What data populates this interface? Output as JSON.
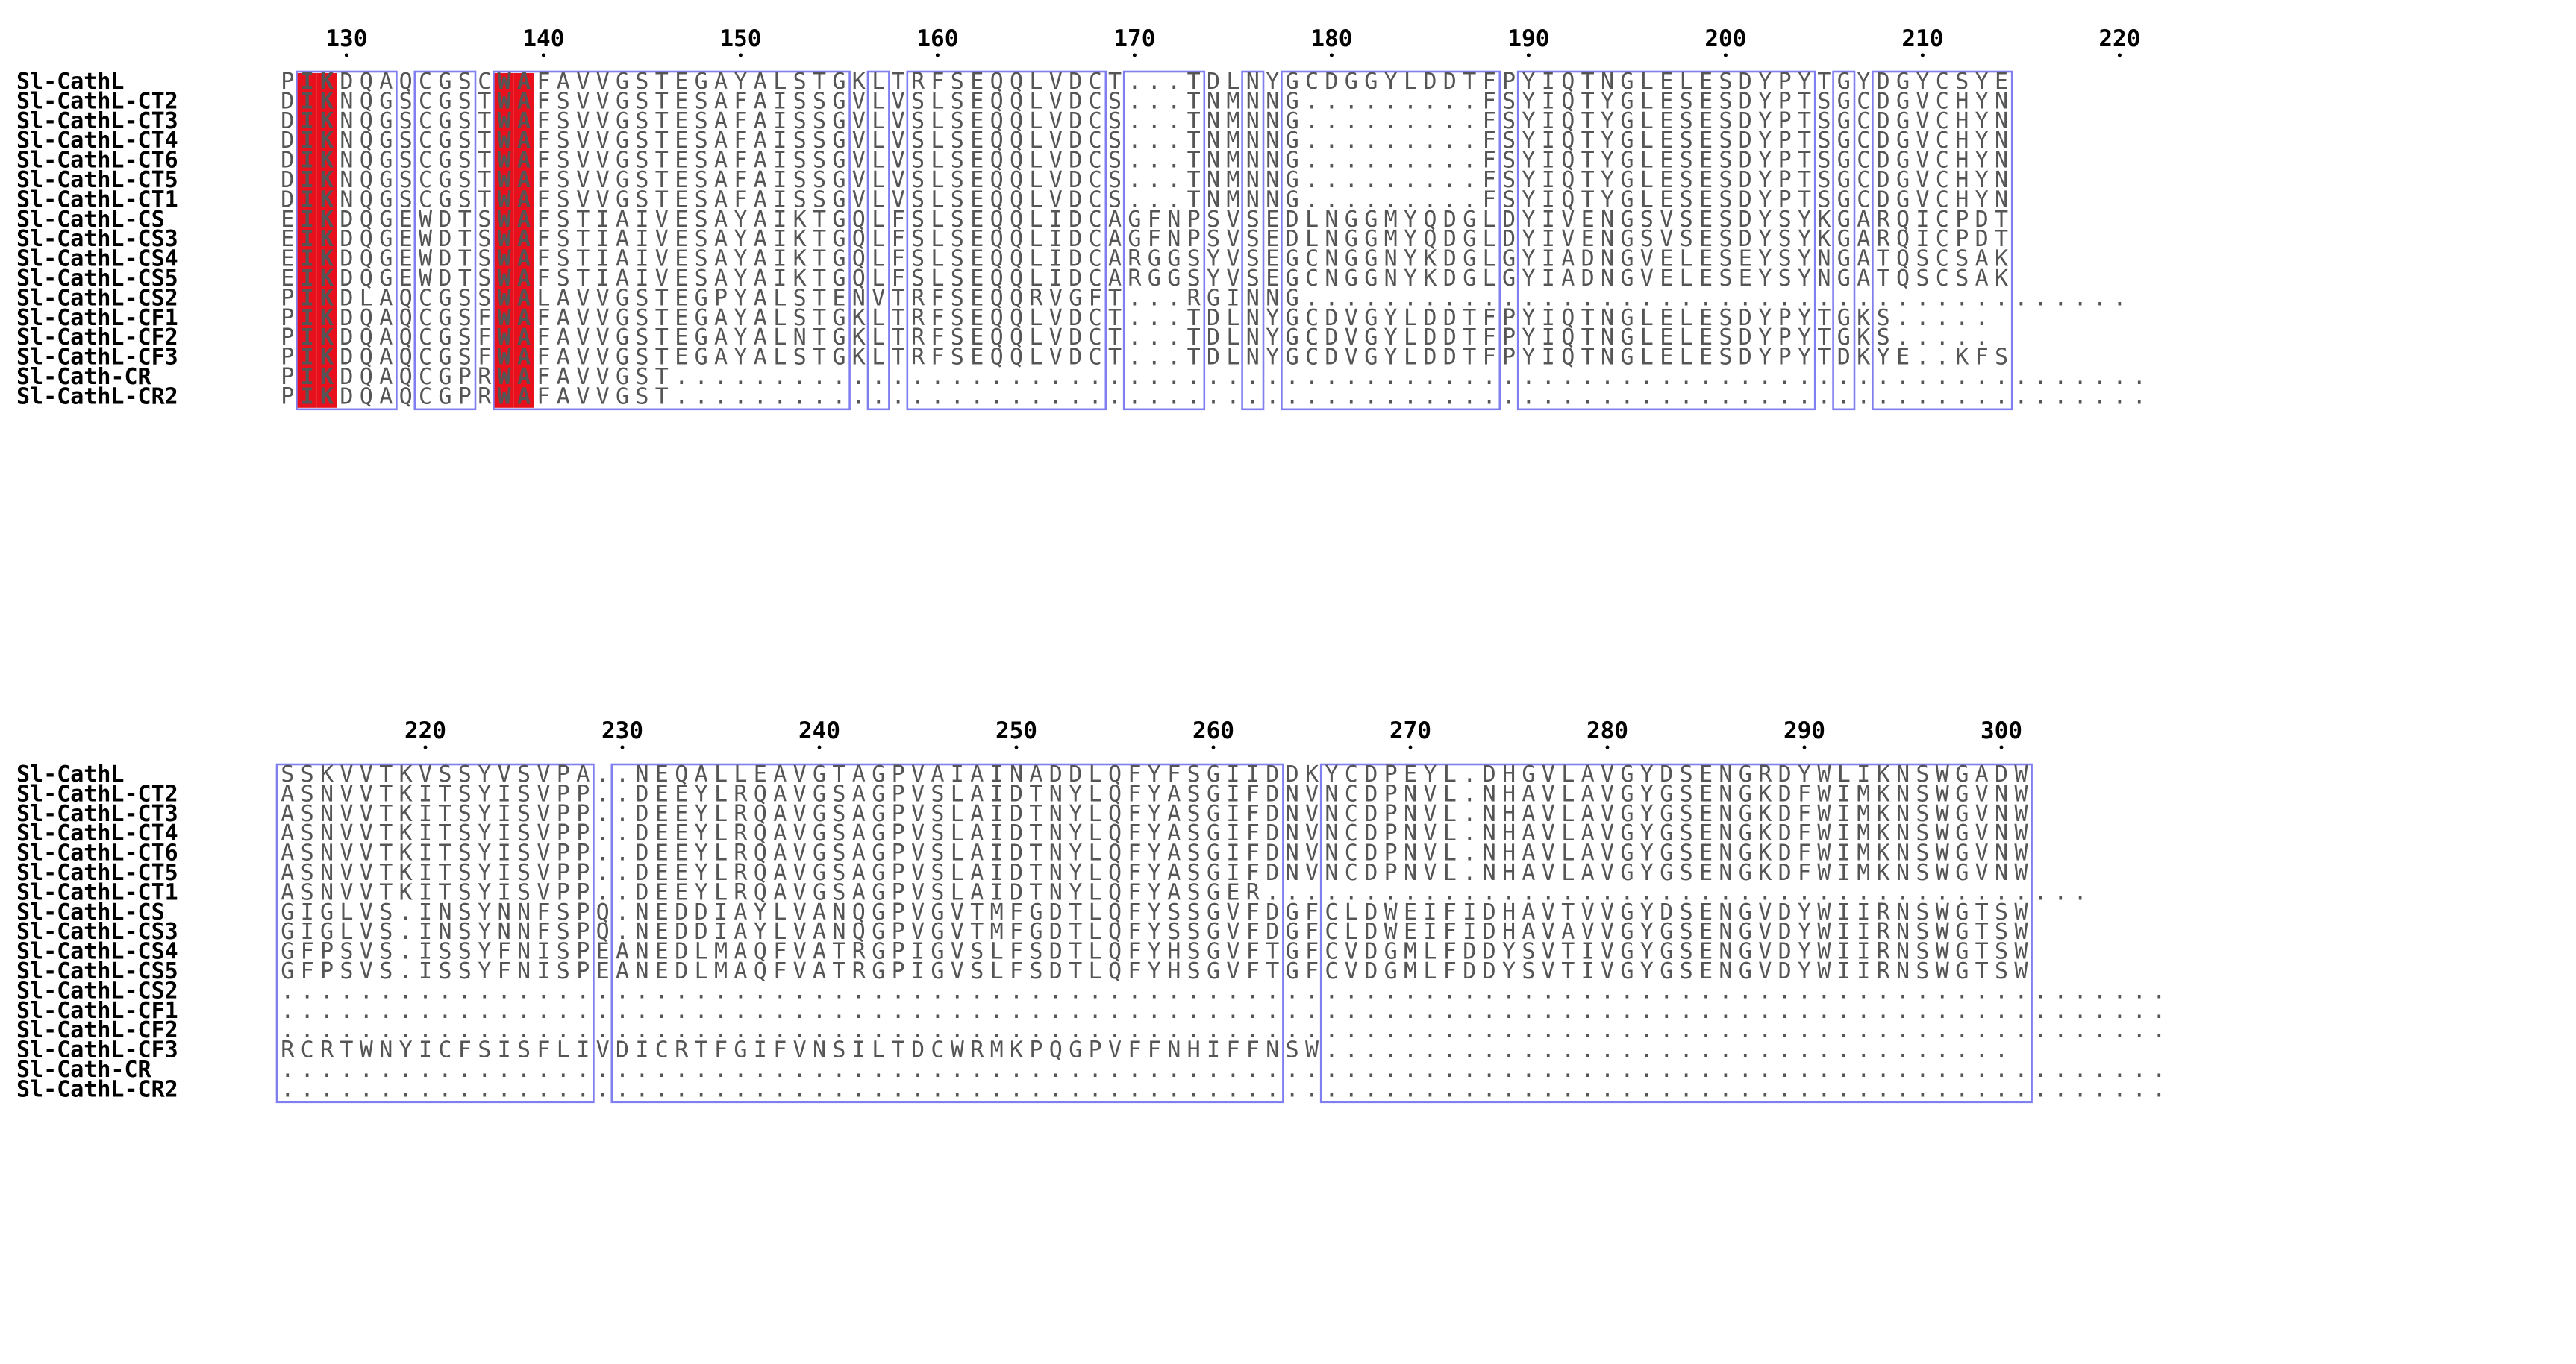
{
  "figure": {
    "blocks": [
      {
        "start": 127,
        "names": [
          "Sl-CathL",
          "Sl-CathL-CT2",
          "Sl-CathL-CT3",
          "Sl-CathL-CT4",
          "Sl-CathL-CT6",
          "Sl-CathL-CT5",
          "Sl-CathL-CT1",
          "Sl-CathL-CS",
          "Sl-CathL-CS3",
          "Sl-CathL-CS4",
          "Sl-CathL-CS5",
          "Sl-CathL-CS2",
          "Sl-CathL-CF1",
          "Sl-CathL-CF2",
          "Sl-CathL-CF3",
          "Sl-Cath-CR",
          "Sl-CathL-CR2"
        ],
        "seqs": [
          "PIKDQAQCGSCWAFAVVGSTEGAYALSTGKLTRFSEQQLVDCT...TDLNYGCDGGYLDDTFPYIQTNGLELESDYPYTGYDGYCSYE",
          "DIKNQGSCGSTWAFSVVGSTESAFAISSGVLVSLSEQQLVDCS...TNMNNG.........FSYIQTYGLESESDYPTSGCDGVCHYN",
          "DIKNQGSCGSTWAFSVVGSTESAFAISSGVLVSLSEQQLVDCS...TNMNNG.........FSYIQTYGLESESDYPTSGCDGVCHYN",
          "DIKNQGSCGSTWAFSVVGSTESAFAISSGVLVSLSEQQLVDCS...TNMNNG.........FSYIQTYGLESESDYPTSGCDGVCHYN",
          "DIKNQGSCGSTWAFSVVGSTESAFAISSGVLVSLSEQQLVDCS...TNMNNG.........FSYIQTYGLESESDYPTSGCDGVCHYN",
          "DIKNQGSCGSTWAFSVVGSTESAFAISSGVLVSLSEQQLVDCS...TNMNNG.........FSYIQTYGLESESDYPTSGCDGVCHYN",
          "DIKNQGSCGSTWAFSVVGSTESAFAISSGVLVSLSEQQLVDCS...TNMNNG.........FSYIQTYGLESESDYPTSGCDGVCHYN",
          "EIKDQGEWDTSWAFSTIAIVESAYAIKTGQLFSLSEQQLIDCAGFNPSVSEDLNGGMYQDGLDYIVENGSVSESDYSYKGARQICPDT",
          "EIKDQGEWDTSWAFSTIAIVESAYAIKTGQLFSLSEQQLIDCAGFNPSVSEDLNGGMYQDGLDYIVENGSVSESDYSYKGARQICPDT",
          "EIKDQGEWDTSWAFSTIAIVESAYAIKTGQLFSLSEQQLIDCARGGSYVSEGCNGGNYKDGLGYIADNGVELESEYSYNGATQSCSAK",
          "EIKDQGEWDTSWAFSTIAIVESAYAIKTGQLFSLSEQQLIDCARGGSYVSEGCNGGNYKDGLGYIADNGVELESEYSYNGATQSCSAK",
          "PIKDLAQCGSSWALAVVGSTEGPYALSTENVTRFSEQQRVGFT...RGINNG..........................................",
          "PIKDQAQCGSFWAFAVVGSTEGAYALSTGKLTRFSEQQLVDCT...TDLNYGCDVGYLDDTFPYIQTNGLELESDYPYTGKS.....",
          "PIKDQAQCGSFWAFAVVGSTEGAYALNTGKLTRFSEQQLVDCT...TDLNYGCDVGYLDDTFPYIQTNGLELESDYPYTGKS.....",
          "PIKDQAQCGSFWAFAVVGSTEGAYALSTGKLTRFSEQQLVDCT...TDLNYGCDVGYLDDTFPYIQTNGLELESDYPYTDKYE..KFS",
          "PIKDQAQCGPRWAFAVVGST...........................................................................",
          "PIKDQAQCGPRWAFAVVGST..........................................................................."
        ]
      },
      {
        "start": 213,
        "names": [
          "Sl-CathL",
          "Sl-CathL-CT2",
          "Sl-CathL-CT3",
          "Sl-CathL-CT4",
          "Sl-CathL-CT6",
          "Sl-CathL-CT5",
          "Sl-CathL-CT1",
          "Sl-CathL-CS",
          "Sl-CathL-CS3",
          "Sl-CathL-CS4",
          "Sl-CathL-CS5",
          "Sl-CathL-CS2",
          "Sl-CathL-CF1",
          "Sl-CathL-CF2",
          "Sl-CathL-CF3",
          "Sl-Cath-CR",
          "Sl-CathL-CR2"
        ],
        "seqs": [
          "SSKVVTKVSSYVSVPA..NEQALLEAVGTAGPVAIAINADDLQFYFSGIIDDKYCDPEYL.DHGVLAVGYDSENGRDYWLIKNSWGADW",
          "ASNVVTKITSYISVPP..DEEYLRQAVGSAGPVSLAIDTNYLQFYASGIFDNVNCDPNVL.NHAVLAVGYGSENGKDFWIMKNSWGVNW",
          "ASNVVTKITSYISVPP..DEEYLRQAVGSAGPVSLAIDTNYLQFYASGIFDNVNCDPNVL.NHAVLAVGYGSENGKDFWIMKNSWGVNW",
          "ASNVVTKITSYISVPP..DEEYLRQAVGSAGPVSLAIDTNYLQFYASGIFDNVNCDPNVL.NHAVLAVGYGSENGKDFWIMKNSWGVNW",
          "ASNVVTKITSYISVPP..DEEYLRQAVGSAGPVSLAIDTNYLQFYASGIFDNVNCDPNVL.NHAVLAVGYGSENGKDFWIMKNSWGVNW",
          "ASNVVTKITSYISVPP..DEEYLRQAVGSAGPVSLAIDTNYLQFYASGIFDNVNCDPNVL.NHAVLAVGYGSENGKDFWIMKNSWGVNW",
          "ASNVVTKITSYISVPP..DEEYLRQAVGSAGPVSLAIDTNYLQFYASGER..........................................",
          "GIGLVS.INSYNNFSPQ.NEDDIAYLVANQGPVGVTMFGDTLQFYSSGVFDGFCLDWEIFIDHAVTVVGYDSENGVDYWIIRNSWGTSW",
          "GIGLVS.INSYNNFSPQ.NEDDIAYLVANQGPVGVTMFGDTLQFYSSGVFDGFCLDWEIFIDHAVAVVGYGSENGVDYWIIRNSWGTSW",
          "GFPSVS.ISSYFNISPEANEDLMAQFVATRGPIGVSLFSDTLQFYHSGVFTGFCVDGMLFDDYSVTIVGYGSENGVDYWIIRNSWGTSW",
          "GFPSVS.ISSYFNISPEANEDLMAQFVATRGPIGVSLFSDTLQFYHSGVFTGFCVDGMLFDDYSVTIVGYGSENGVDYWIIRNSWGTSW",
          "................................................................................................",
          "................................................................................................",
          "................................................................................................",
          "RCRTWNYICFSISFLIVDICRTFGIFVNSILTDCWRMKPQGPVFFNHIFFNSW...................................",
          "................................................................................................",
          "................................................................................................"
        ]
      }
    ],
    "palette": {
      "identity_fill": "#e8101c",
      "identity_text": "#ffffff",
      "similar_text": "#e8101c",
      "plain_text": "#555555",
      "box_stroke": "#7f7ff0",
      "label_text": "#000000"
    }
  }
}
